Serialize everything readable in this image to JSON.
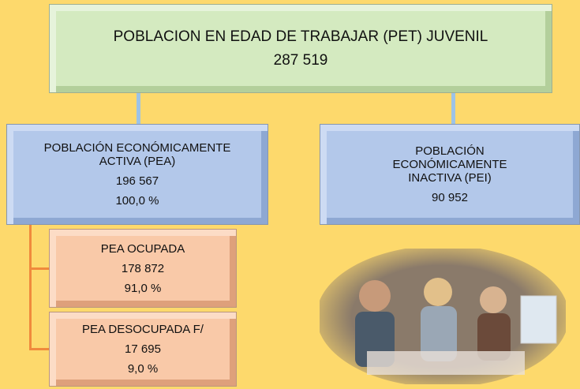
{
  "nodes": [
    {
      "label": "POBLACION EN EDAD DE TRABAJAR (PET) JUVENIL",
      "value": "287 519"
    },
    {
      "label": "POBLACIÓN ECONÓMICAMENTE ACTIVA (PEA)",
      "value": "196 567",
      "percent": "100,0 %"
    },
    {
      "label": "POBLACIÓN ECONÓMICAMENTE INACTIVA (PEI)",
      "value": "90 952"
    },
    {
      "label": "PEA OCUPADA",
      "value": "178 872",
      "percent": "91,0 %"
    },
    {
      "label": "PEA DESOCUPADA F/",
      "value": "17 695",
      "percent": "9,0 %"
    }
  ]
}
